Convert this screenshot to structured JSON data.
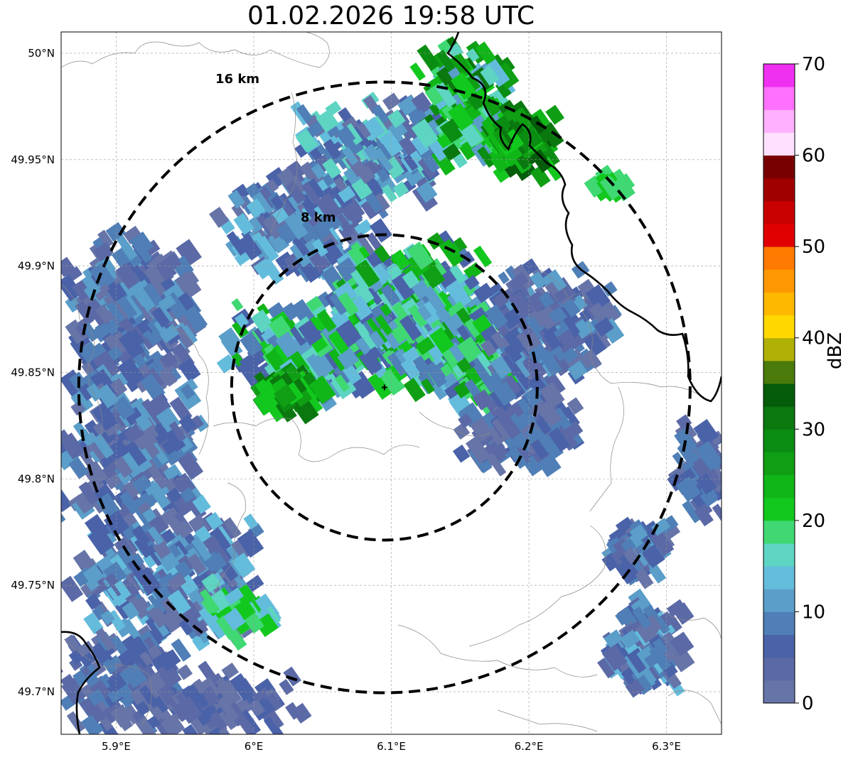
{
  "title": "01.02.2026 19:58 UTC",
  "map": {
    "lon_range": [
      5.86,
      6.34
    ],
    "lat_range": [
      49.68,
      50.01
    ],
    "lon_ticks": [
      5.9,
      6.0,
      6.1,
      6.2,
      6.3
    ],
    "lon_tick_labels": [
      "5.9°E",
      "6°E",
      "6.1°E",
      "6.2°E",
      "6.3°E"
    ],
    "lat_ticks": [
      50.0,
      49.95,
      49.9,
      49.85,
      49.8,
      49.75,
      49.7
    ],
    "lat_tick_labels": [
      "50°N",
      "49.95°N",
      "49.9°N",
      "49.85°N",
      "49.8°N",
      "49.75°N",
      "49.7°N"
    ],
    "grid": true,
    "radar_site": {
      "lon": 6.095,
      "lat": 49.843
    },
    "range_rings": [
      {
        "label": "8 km",
        "radius_km": 8
      },
      {
        "label": "16 km",
        "radius_km": 16
      }
    ]
  },
  "colorbar": {
    "label": "dBZ",
    "min": 0,
    "max": 70,
    "tick_labels": [
      "0",
      "10",
      "20",
      "30",
      "40",
      "50",
      "60",
      "70"
    ],
    "colors": [
      "#6674a8",
      "#5b6aa6",
      "#4a62a8",
      "#4f7fb6",
      "#5a9ec9",
      "#64bcdc",
      "#5ed4c2",
      "#3fd873",
      "#12c81e",
      "#10b518",
      "#0f9e14",
      "#0b8c12",
      "#0a780f",
      "#055c0a",
      "#4a7a0a",
      "#b0b006",
      "#ffd800",
      "#ffb800",
      "#ff9800",
      "#ff7a00",
      "#e00000",
      "#c80000",
      "#a00000",
      "#780000",
      "#ffe0ff",
      "#ffb0ff",
      "#ff70ff",
      "#f030f0"
    ]
  }
}
